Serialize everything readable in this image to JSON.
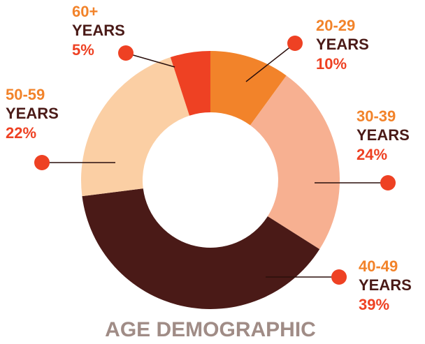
{
  "chart_data": {
    "type": "donut",
    "title": "AGE DEMOGRAPHIC",
    "categories": [
      "20-29",
      "30-39",
      "40-49",
      "50-59",
      "60+"
    ],
    "unit_label": "YEARS",
    "values": [
      10,
      24,
      39,
      22,
      5
    ],
    "value_labels": [
      "10%",
      "24%",
      "39%",
      "22%",
      "5%"
    ],
    "colors": [
      "#f2832a",
      "#f7b091",
      "#4a1a17",
      "#fbcfa4",
      "#ee4123"
    ]
  }
}
